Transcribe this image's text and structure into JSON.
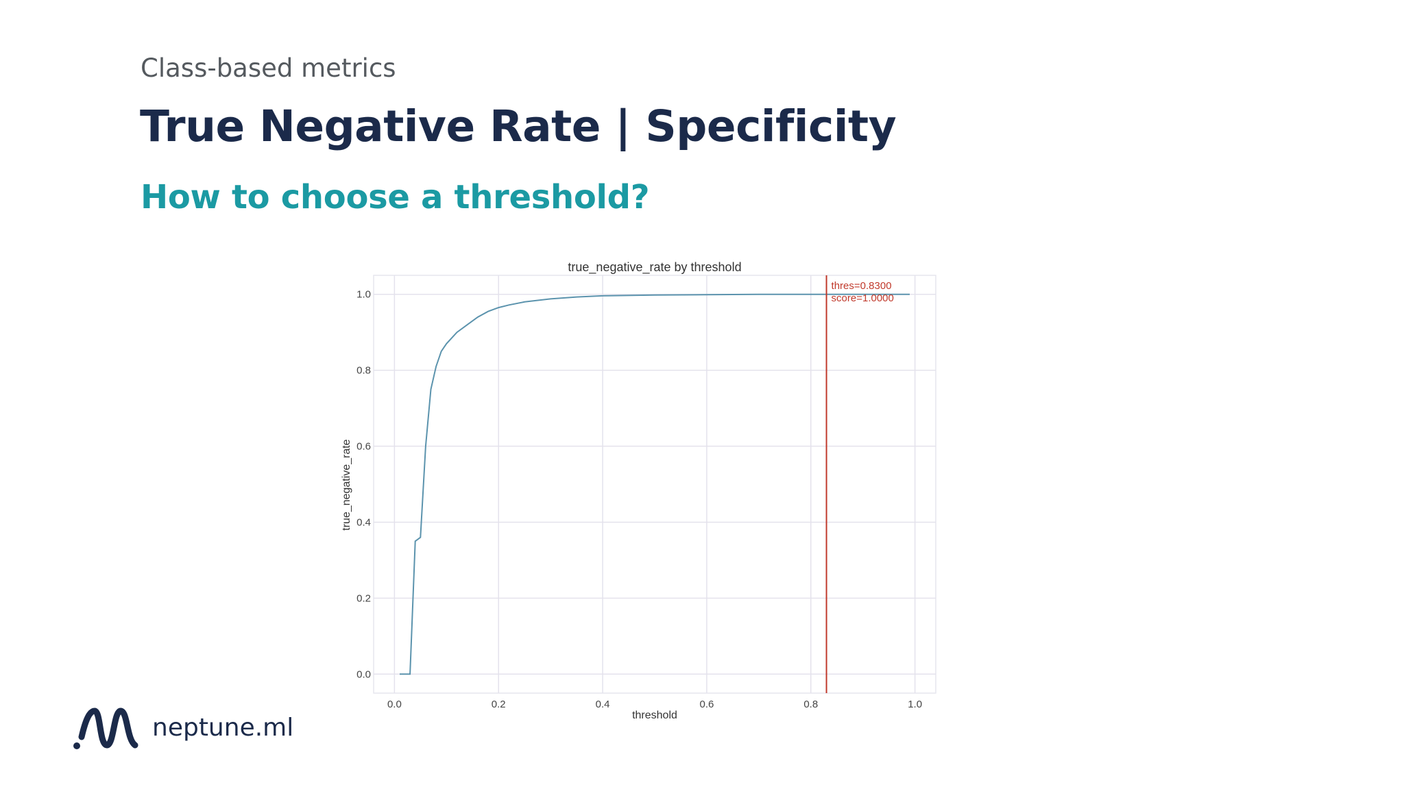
{
  "slide": {
    "kicker": "Class-based metrics",
    "title": "True Negative Rate | Specificity",
    "subtitle": "How to choose a threshold?"
  },
  "brand": {
    "logo_text": "neptune.ml",
    "logo_icon": "neptune-wave-icon",
    "colors": {
      "title": "#1b2a4a",
      "subtitle": "#1b9aa3",
      "kicker": "#555a5f"
    }
  },
  "chart_data": {
    "type": "line",
    "title": "true_negative_rate by threshold",
    "xlabel": "threshold",
    "ylabel": "true_negative_rate",
    "xlim": [
      -0.04,
      1.04
    ],
    "ylim": [
      -0.05,
      1.05
    ],
    "xticks": [
      0.0,
      0.2,
      0.4,
      0.6,
      0.8,
      1.0
    ],
    "xtick_labels": [
      "0.0",
      "0.2",
      "0.4",
      "0.6",
      "0.8",
      "1.0"
    ],
    "yticks": [
      0.0,
      0.2,
      0.4,
      0.6,
      0.8,
      1.0
    ],
    "ytick_labels": [
      "0.0",
      "0.2",
      "0.4",
      "0.6",
      "0.8",
      "1.0"
    ],
    "grid": true,
    "line_color": "#5b93ad",
    "series": [
      {
        "name": "",
        "x": [
          0.01,
          0.03,
          0.04,
          0.045,
          0.05,
          0.06,
          0.07,
          0.08,
          0.09,
          0.1,
          0.12,
          0.14,
          0.16,
          0.18,
          0.2,
          0.22,
          0.25,
          0.3,
          0.35,
          0.4,
          0.5,
          0.6,
          0.7,
          0.8,
          0.9,
          0.99
        ],
        "y": [
          0.0,
          0.0,
          0.35,
          0.355,
          0.36,
          0.6,
          0.75,
          0.81,
          0.85,
          0.87,
          0.9,
          0.92,
          0.94,
          0.955,
          0.965,
          0.972,
          0.98,
          0.988,
          0.993,
          0.996,
          0.998,
          0.999,
          1.0,
          1.0,
          1.0,
          1.0
        ]
      }
    ],
    "annotation": {
      "threshold_value": 0.83,
      "color": "#c0392b",
      "line1": "thres=0.8300",
      "line2": "score=1.0000"
    }
  }
}
